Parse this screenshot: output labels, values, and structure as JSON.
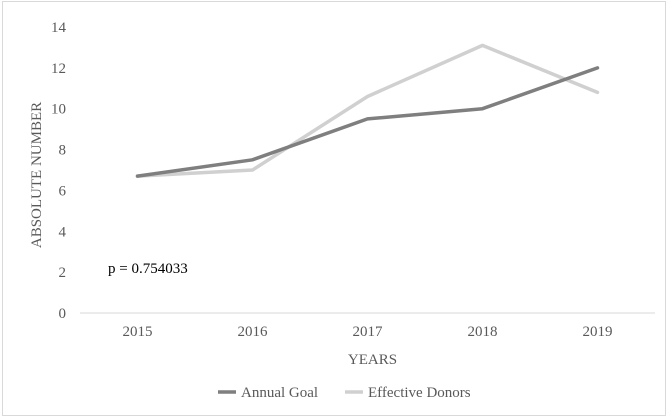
{
  "chart_data": {
    "type": "line",
    "title": "",
    "xlabel": "YEARS",
    "ylabel": "ABSOLUTE NUMBER",
    "categories": [
      "2015",
      "2016",
      "2017",
      "2018",
      "2019"
    ],
    "yticks": [
      "0",
      "2",
      "4",
      "6",
      "8",
      "10",
      "12",
      "14"
    ],
    "ylim": [
      0,
      14
    ],
    "grid": false,
    "legend_position": "bottom",
    "series": [
      {
        "name": "Annual Goal",
        "color": "#7f7f7f",
        "values": [
          6.7,
          7.5,
          9.5,
          10.0,
          12.0
        ]
      },
      {
        "name": "Effective Donors",
        "color": "#d0d0d0",
        "values": [
          6.7,
          7.0,
          10.6,
          13.1,
          10.8
        ]
      }
    ],
    "annotation": "p = 0.754033"
  }
}
